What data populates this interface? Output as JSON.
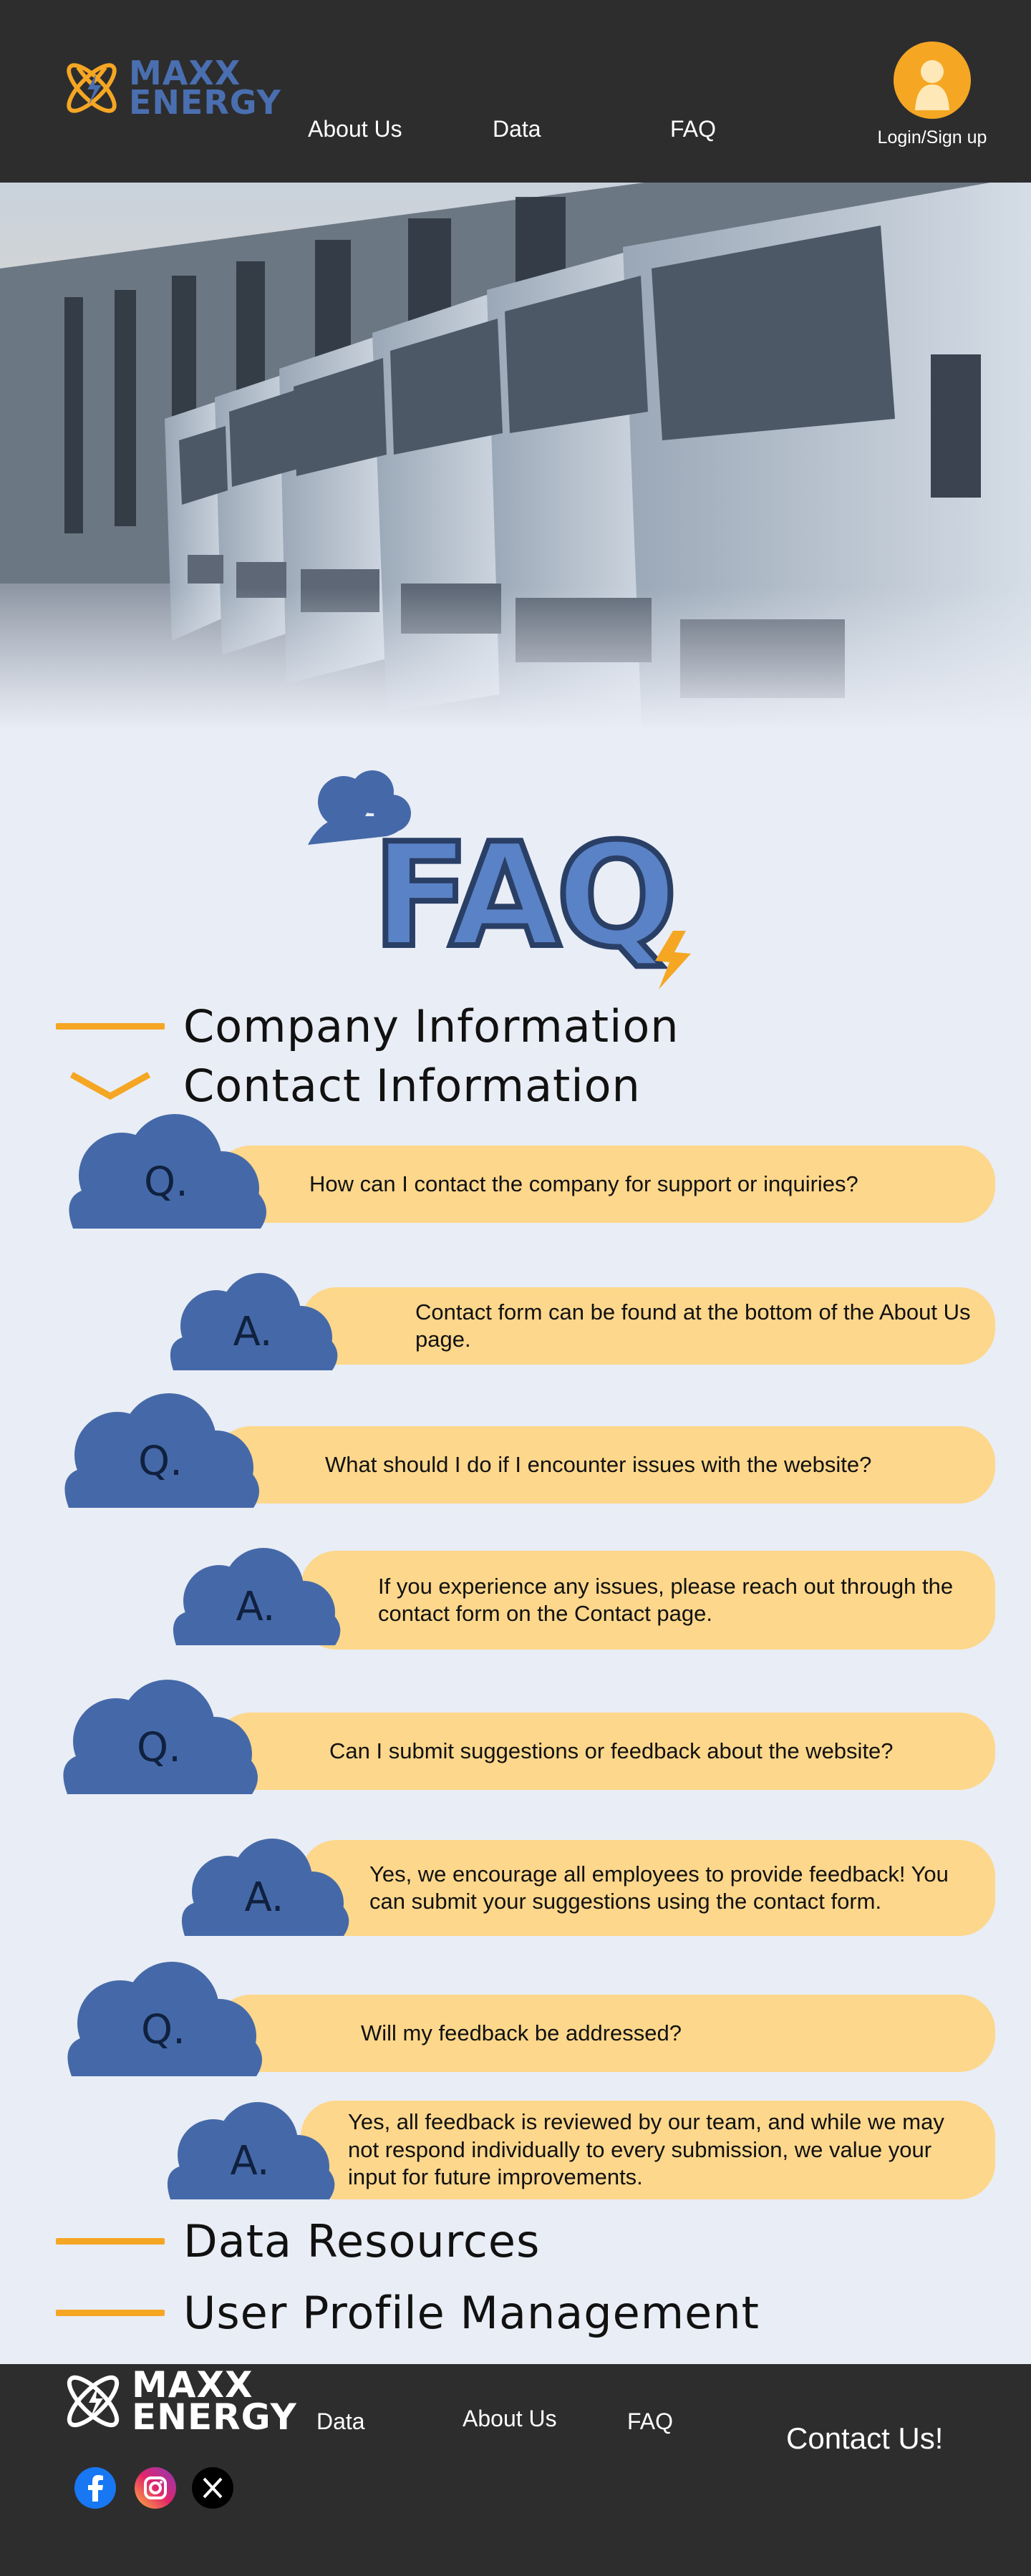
{
  "brand": {
    "line1": "MAXX",
    "line2": "ENERGY"
  },
  "nav": {
    "about": "About Us",
    "data": "Data",
    "faq": "FAQ"
  },
  "login": {
    "label": "Login/Sign up"
  },
  "faq_heading": "FAQ",
  "sections": {
    "company": "Company Information",
    "contact": "Contact Information",
    "data_resources": "Data Resources",
    "user_profile": "User Profile Management"
  },
  "markers": {
    "q": "Q.",
    "a": "A."
  },
  "qa": [
    {
      "question": "How can I contact the company for support or inquiries?",
      "answer": "Contact form can be found at the bottom of the About Us page."
    },
    {
      "question": "What should I do if I encounter issues with the website?",
      "answer": "If you experience any issues, please reach out through the contact form on the Contact page."
    },
    {
      "question": "Can I submit suggestions or feedback about the website?",
      "answer": "Yes, we encourage all employees to provide feedback! You can submit your suggestions using the contact form."
    },
    {
      "question": "Will my feedback be addressed?",
      "answer": "Yes, all feedback is reviewed by our team, and while we may not respond individually to every submission, we value your input for future improvements."
    }
  ],
  "footer": {
    "data": "Data",
    "about": "About Us",
    "faq": "FAQ",
    "contact": "Contact Us!",
    "social": [
      "facebook-icon",
      "instagram-icon",
      "x-icon"
    ]
  },
  "colors": {
    "header_bg": "#2d2d2e",
    "page_bg": "#e9edf5",
    "accent": "#f5a623",
    "brand_blue": "#4a6fb0",
    "pill": "#fdd78b",
    "cloud": "#4569a8"
  }
}
